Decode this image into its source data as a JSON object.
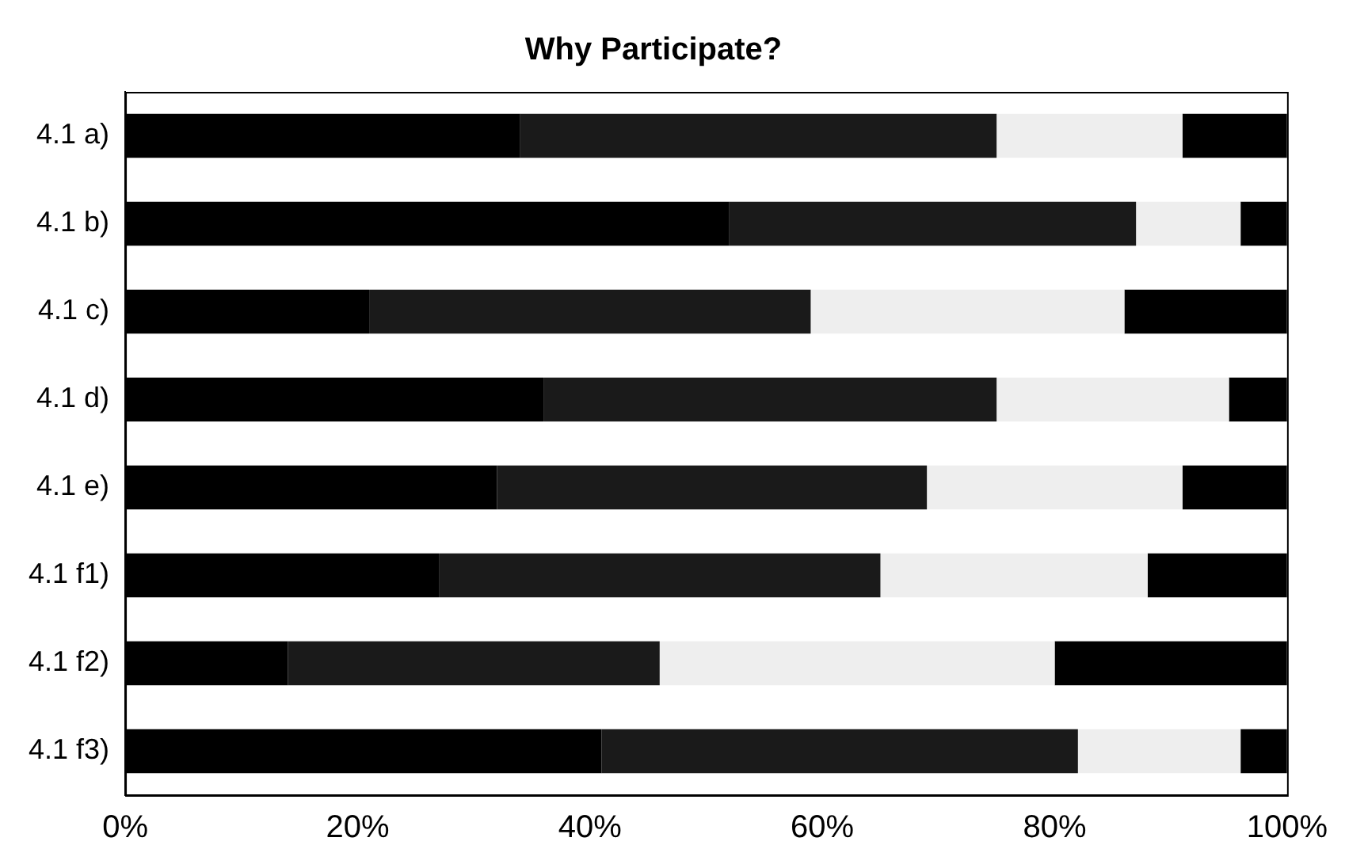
{
  "chart_data": {
    "type": "bar",
    "orientation": "horizontal",
    "stacked": true,
    "title": "Why Participate?",
    "categories": [
      "4.1 a)",
      "4.1 b)",
      "4.1 c)",
      "4.1 d)",
      "4.1 e)",
      "4.1 f1)",
      "4.1 f2)",
      "4.1 f3)"
    ],
    "series": [
      {
        "color": "#000000",
        "values": [
          34,
          52,
          21,
          36,
          32,
          27,
          14,
          41
        ]
      },
      {
        "color": "#1a1a1a",
        "values": [
          41,
          35,
          38,
          39,
          37,
          38,
          32,
          41
        ]
      },
      {
        "color": "#eeeeee",
        "values": [
          16,
          9,
          27,
          20,
          22,
          23,
          34,
          14
        ]
      },
      {
        "color": "#000000",
        "values": [
          9,
          4,
          14,
          5,
          9,
          12,
          20,
          4
        ]
      }
    ],
    "xlim": [
      0,
      100
    ],
    "xticks": [
      {
        "value": 0,
        "label": "0%"
      },
      {
        "value": 20,
        "label": "20%"
      },
      {
        "value": 40,
        "label": "40%"
      },
      {
        "value": 60,
        "label": "60%"
      },
      {
        "value": 80,
        "label": "80%"
      },
      {
        "value": 100,
        "label": "100%"
      }
    ],
    "grid": false,
    "legend": false
  }
}
